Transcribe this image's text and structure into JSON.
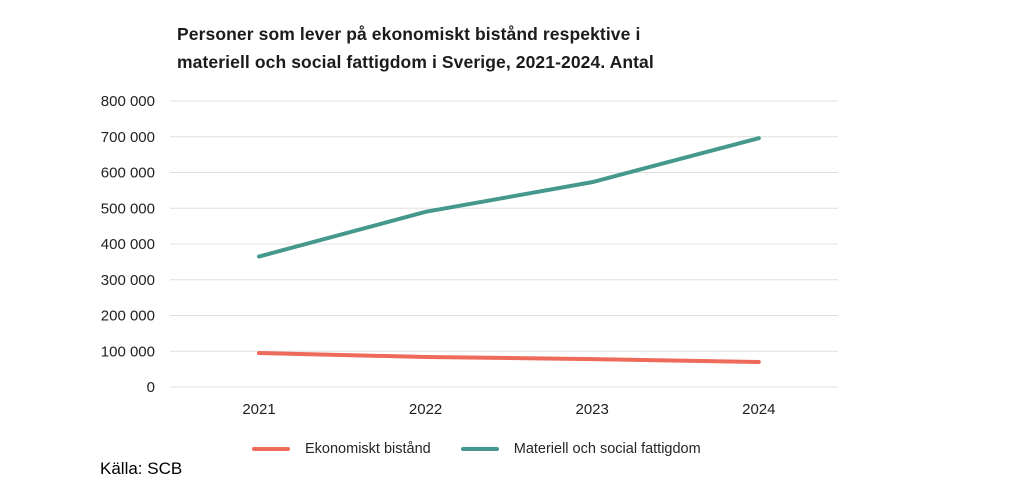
{
  "title": {
    "line1": "Personer som lever på ekonomiskt bistånd respektive i",
    "line2": "materiell och social fattigdom i Sverige, 2021-2024. Antal"
  },
  "source": "Källa: SCB",
  "colors": {
    "ekonomiskt_bistand": "#EE6A5A",
    "materiell_fattigdom": "#45998C",
    "gridline": "#E0E0E0",
    "axis_text": "#222222",
    "title_text": "#1B1B1B"
  },
  "legend": [
    {
      "label": "Ekonomiskt bistånd",
      "color": "#EE6A5A"
    },
    {
      "label": "Materiell och social fattigdom",
      "color": "#45998C"
    }
  ],
  "chart_data": {
    "type": "line",
    "title": "Personer som lever på ekonomiskt bistånd respektive i materiell och social fattigdom i Sverige, 2021-2024. Antal",
    "categories": [
      "2021",
      "2022",
      "2023",
      "2024"
    ],
    "series": [
      {
        "name": "Ekonomiskt bistånd",
        "color": "#EE6A5A",
        "values": [
          95000,
          84000,
          78000,
          70000
        ]
      },
      {
        "name": "Materiell och social fattigdom",
        "color": "#45998C",
        "values": [
          365000,
          490000,
          573000,
          696000
        ]
      }
    ],
    "xlabel": "",
    "ylabel": "",
    "ylim": [
      0,
      800000
    ],
    "yticks": [
      {
        "value": 0,
        "label": "0"
      },
      {
        "value": 100000,
        "label": "100 000"
      },
      {
        "value": 200000,
        "label": "200 000"
      },
      {
        "value": 300000,
        "label": "300 000"
      },
      {
        "value": 400000,
        "label": "400 000"
      },
      {
        "value": 500000,
        "label": "500 000"
      },
      {
        "value": 600000,
        "label": "600 000"
      },
      {
        "value": 700000,
        "label": "700 000"
      },
      {
        "value": 800000,
        "label": "800 000"
      }
    ],
    "grid": true,
    "legend_position": "bottom",
    "source": "Källa: SCB"
  }
}
